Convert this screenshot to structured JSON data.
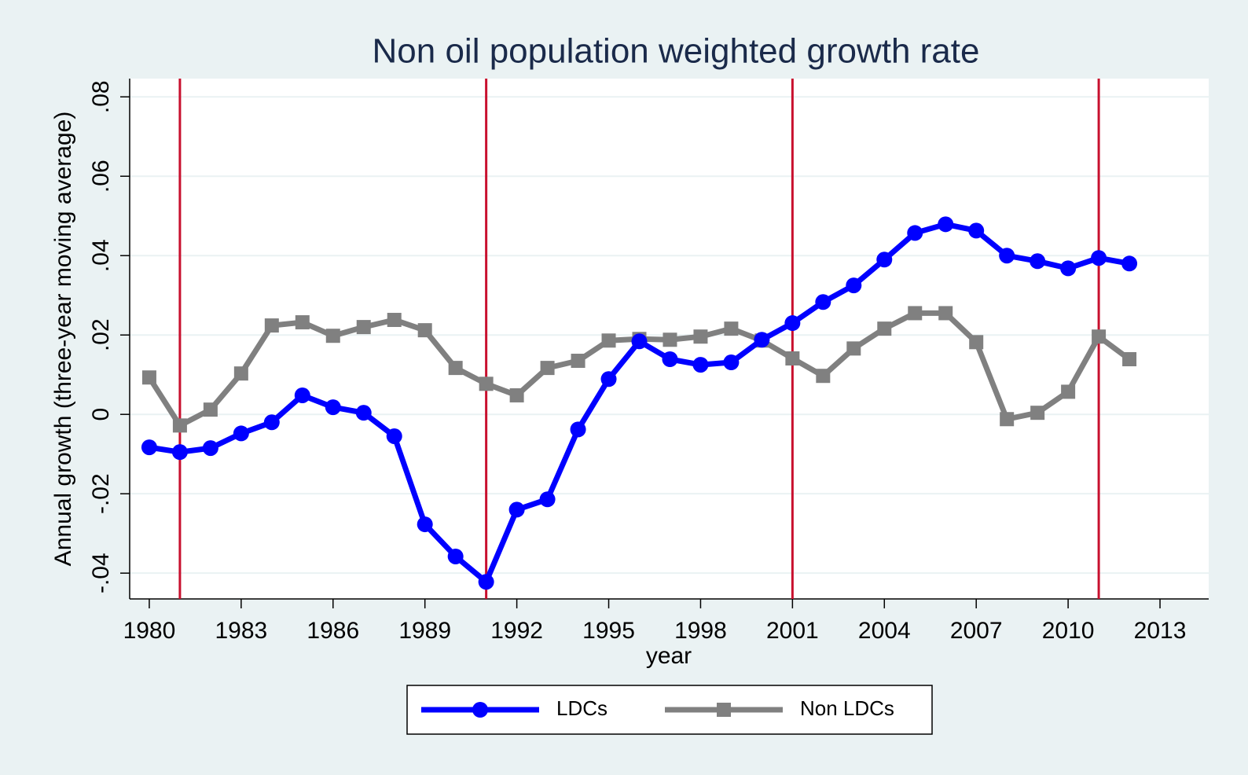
{
  "chart_data": {
    "type": "line",
    "title": "Non oil population weighted growth rate",
    "xlabel": "year",
    "ylabel": "Annual growth (three-year moving average)",
    "x": [
      1980,
      1981,
      1982,
      1983,
      1984,
      1985,
      1986,
      1987,
      1988,
      1989,
      1990,
      1991,
      1992,
      1993,
      1994,
      1995,
      1996,
      1997,
      1998,
      1999,
      2000,
      2001,
      2002,
      2003,
      2004,
      2005,
      2006,
      2007,
      2008,
      2009,
      2010,
      2011,
      2012
    ],
    "series": [
      {
        "name": "LDCs",
        "color": "#0000ff",
        "marker": "circle",
        "values": [
          -0.0083,
          -0.0095,
          -0.0085,
          -0.0048,
          -0.002,
          0.0048,
          0.0018,
          0.0004,
          -0.0055,
          -0.0277,
          -0.0358,
          -0.0422,
          -0.024,
          -0.0214,
          -0.0038,
          0.0089,
          0.0184,
          0.0139,
          0.0125,
          0.0131,
          0.0188,
          0.023,
          0.0283,
          0.0325,
          0.039,
          0.0457,
          0.0479,
          0.0463,
          0.04,
          0.0386,
          0.0368,
          0.0394,
          0.038
        ]
      },
      {
        "name": "Non LDCs",
        "color": "#808080",
        "marker": "square",
        "values": [
          0.0093,
          -0.0028,
          0.0012,
          0.0103,
          0.0224,
          0.0232,
          0.0198,
          0.022,
          0.0238,
          0.0212,
          0.0117,
          0.0077,
          0.0048,
          0.0117,
          0.0135,
          0.0186,
          0.019,
          0.0188,
          0.0196,
          0.0216,
          0.0186,
          0.0141,
          0.0097,
          0.0166,
          0.0216,
          0.0255,
          0.0255,
          0.0182,
          -0.0012,
          0.0004,
          0.0057,
          0.0196,
          0.0139
        ]
      }
    ],
    "xlim": [
      1979.36,
      2014.59
    ],
    "xticks": [
      1980,
      1983,
      1986,
      1989,
      1992,
      1995,
      1998,
      2001,
      2004,
      2007,
      2010,
      2013
    ],
    "ylim": [
      -0.0465,
      0.0846
    ],
    "yticks": [
      {
        "value": -0.04,
        "label": "-.04"
      },
      {
        "value": -0.02,
        "label": "-.02"
      },
      0,
      {
        "value": 0.02,
        "label": ".02"
      },
      {
        "value": 0.04,
        "label": ".04"
      },
      {
        "value": 0.06,
        "label": ".06"
      },
      {
        "value": 0.08,
        "label": ".08"
      }
    ],
    "xlines": [
      1981,
      1991,
      2001,
      2011
    ],
    "xline_color": "#c8102e",
    "grid": true,
    "legend_position": "bottom"
  }
}
